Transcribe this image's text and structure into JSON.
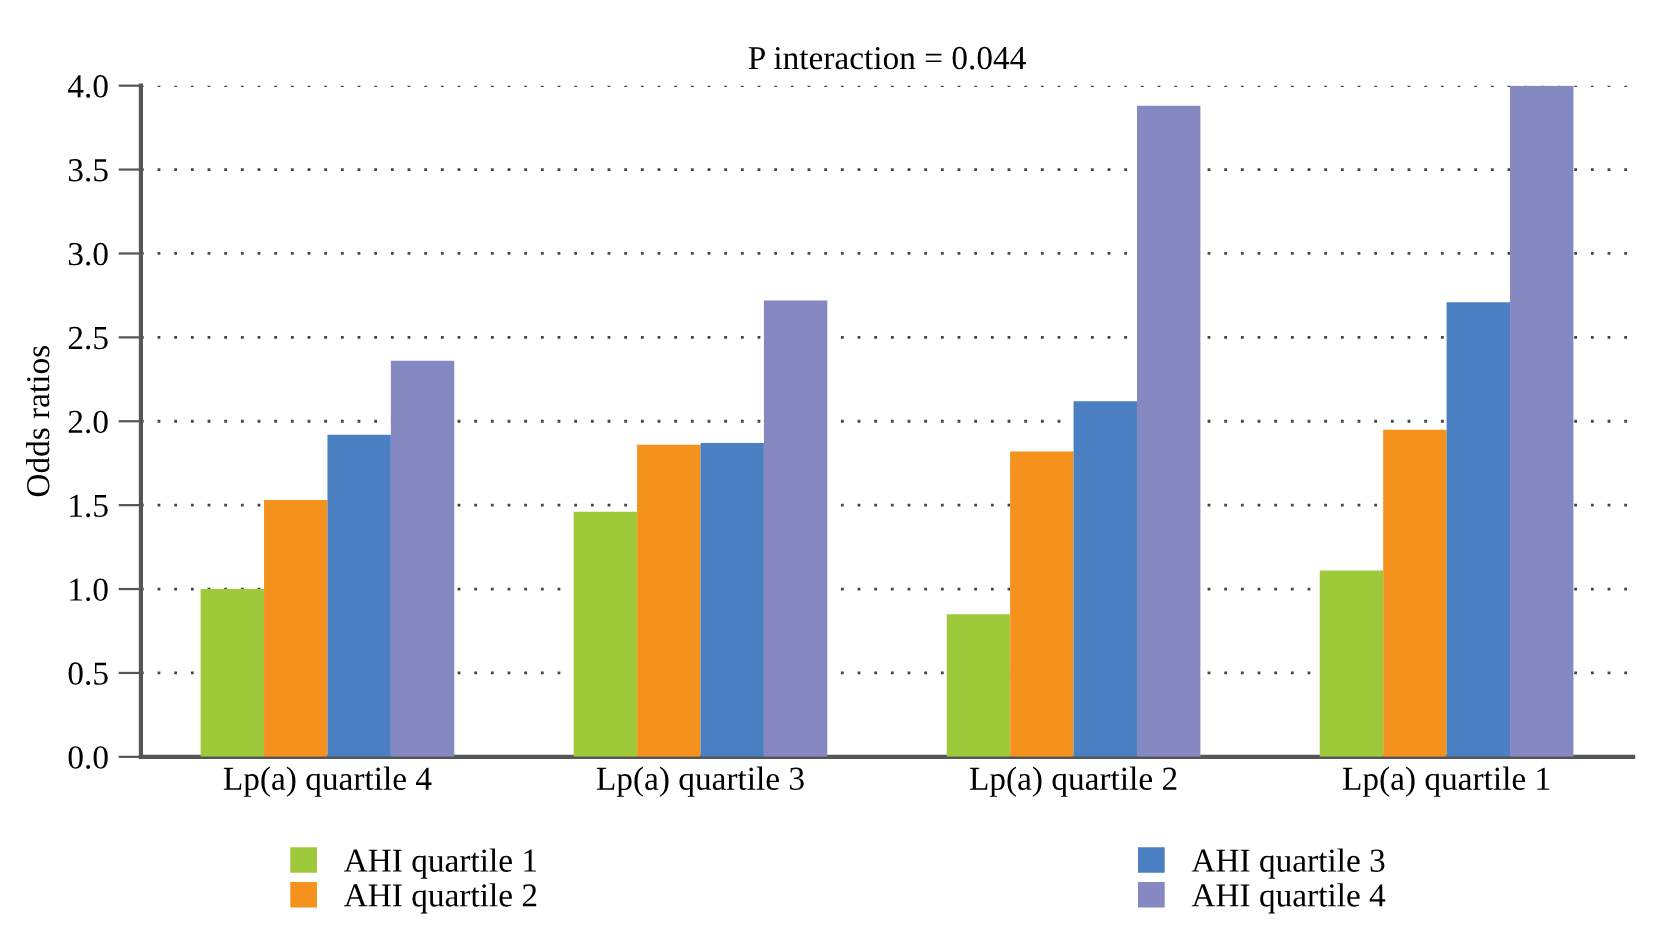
{
  "chart_data": {
    "type": "bar",
    "title": "P interaction = 0.044",
    "ylabel": "Odds ratios",
    "categories": [
      "Lp(a) quartile 4",
      "Lp(a) quartile 3",
      "Lp(a) quartile 2",
      "Lp(a) quartile 1"
    ],
    "series": [
      {
        "name": "AHI quartile 1",
        "color": "#9dc93b",
        "values": [
          1.0,
          1.46,
          0.85,
          1.11
        ]
      },
      {
        "name": "AHI quartile 2",
        "color": "#f5921e",
        "values": [
          1.53,
          1.86,
          1.82,
          1.95
        ]
      },
      {
        "name": "AHI quartile 3",
        "color": "#4a7fc1",
        "values": [
          1.92,
          1.87,
          2.12,
          2.71
        ]
      },
      {
        "name": "AHI quartile 4",
        "color": "#8689c1",
        "values": [
          2.36,
          2.72,
          3.88,
          4.0
        ]
      }
    ],
    "ylim": [
      0,
      4.0
    ],
    "yticks": [
      {
        "value": 0,
        "label": "0.0"
      },
      0.5,
      {
        "value": 1,
        "label": "1.0"
      },
      1.5,
      {
        "value": 2,
        "label": "2.0"
      },
      2.5,
      {
        "value": 3,
        "label": "3.0"
      },
      3.5,
      {
        "value": 4,
        "label": "4.0"
      }
    ],
    "grid": "y",
    "legend": "bottom"
  }
}
